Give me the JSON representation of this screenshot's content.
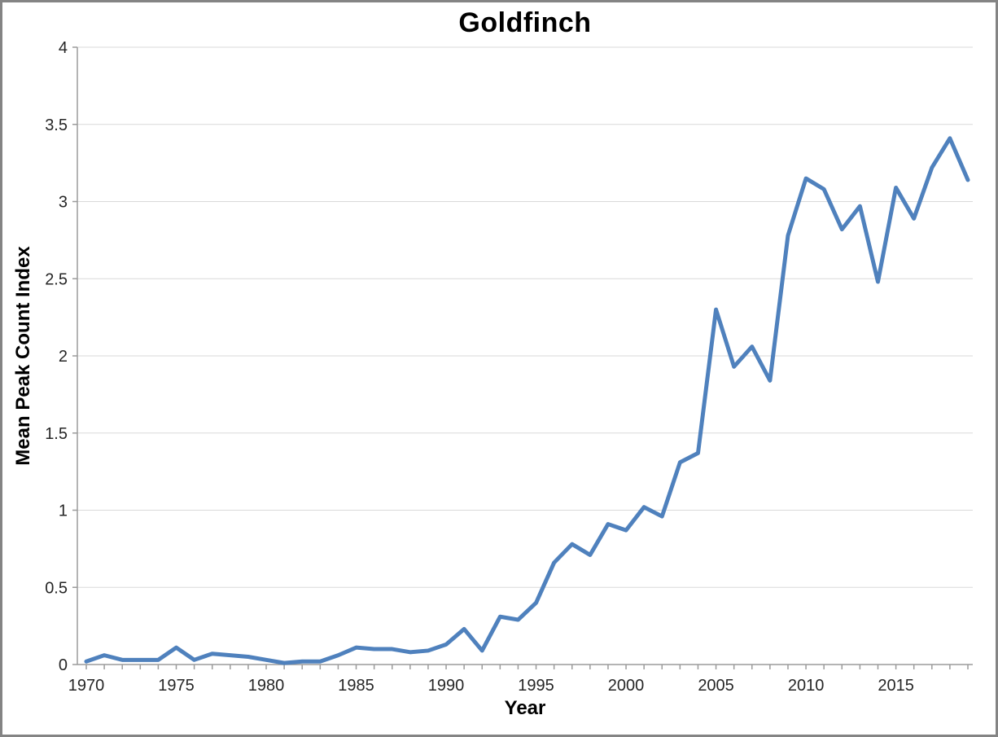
{
  "window": {
    "title": "Goldfinch"
  },
  "chart_data": {
    "type": "line",
    "title": "Goldfinch",
    "xlabel": "Year",
    "ylabel": "Mean Peak Count Index",
    "x": [
      1970,
      1971,
      1972,
      1973,
      1974,
      1975,
      1976,
      1977,
      1978,
      1979,
      1980,
      1981,
      1982,
      1983,
      1984,
      1985,
      1986,
      1987,
      1988,
      1989,
      1990,
      1991,
      1992,
      1993,
      1994,
      1995,
      1996,
      1997,
      1998,
      1999,
      2000,
      2001,
      2002,
      2003,
      2004,
      2005,
      2006,
      2007,
      2008,
      2009,
      2010,
      2011,
      2012,
      2013,
      2014,
      2015,
      2016,
      2017,
      2018,
      2019
    ],
    "series": [
      {
        "name": "Goldfinch",
        "values": [
          0.02,
          0.06,
          0.03,
          0.03,
          0.03,
          0.11,
          0.03,
          0.07,
          0.06,
          0.05,
          0.03,
          0.01,
          0.02,
          0.02,
          0.06,
          0.11,
          0.1,
          0.1,
          0.08,
          0.09,
          0.13,
          0.23,
          0.09,
          0.31,
          0.29,
          0.4,
          0.66,
          0.78,
          0.71,
          0.91,
          0.87,
          1.02,
          0.96,
          1.31,
          1.37,
          2.3,
          1.93,
          2.06,
          1.84,
          2.78,
          3.15,
          3.08,
          2.82,
          2.97,
          2.48,
          3.09,
          2.89,
          3.22,
          3.41,
          3.14
        ]
      }
    ],
    "xtick_labels": [
      "1970",
      "1975",
      "1980",
      "1985",
      "1990",
      "1995",
      "2000",
      "2005",
      "2010",
      "2015"
    ],
    "xtick_years": [
      1970,
      1975,
      1980,
      1985,
      1990,
      1995,
      2000,
      2005,
      2010,
      2015
    ],
    "ytick_labels": [
      "0",
      "0.5",
      "1",
      "1.5",
      "2",
      "2.5",
      "3",
      "3.5",
      "4"
    ],
    "ytick_values": [
      0,
      0.5,
      1,
      1.5,
      2,
      2.5,
      3,
      3.5,
      4
    ],
    "ylim": [
      0,
      4
    ],
    "grid": "horizontal",
    "legend": "none",
    "colors": {
      "line": "#4f81bd",
      "gridline": "#d9d9d9",
      "axis": "#9b9b9b",
      "tick_text": "#262626",
      "title_text": "#000000",
      "frame_border": "#848484",
      "background": "#ffffff"
    }
  }
}
